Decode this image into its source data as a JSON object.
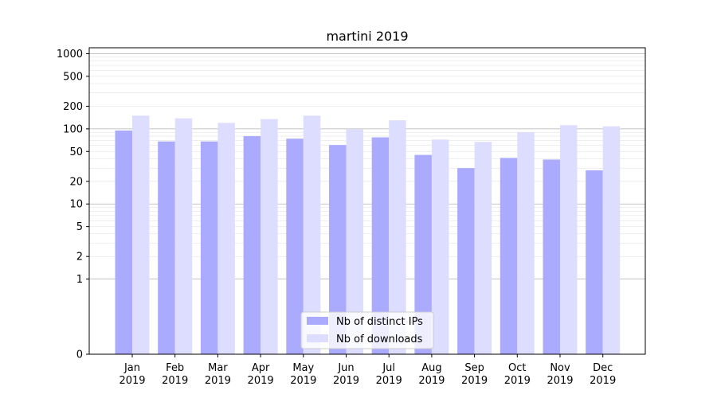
{
  "chart_data": {
    "type": "bar",
    "title": "martini 2019",
    "xlabel": "",
    "ylabel": "",
    "y_scale": "symlog",
    "ylim": [
      0,
      1200
    ],
    "grid": "horizontal",
    "legend_position": "lower-center",
    "y_ticks": [
      0,
      1,
      2,
      5,
      10,
      20,
      50,
      100,
      200,
      500,
      1000
    ],
    "categories": [
      [
        "Jan",
        "2019"
      ],
      [
        "Feb",
        "2019"
      ],
      [
        "Mar",
        "2019"
      ],
      [
        "Apr",
        "2019"
      ],
      [
        "May",
        "2019"
      ],
      [
        "Jun",
        "2019"
      ],
      [
        "Jul",
        "2019"
      ],
      [
        "Aug",
        "2019"
      ],
      [
        "Sep",
        "2019"
      ],
      [
        "Oct",
        "2019"
      ],
      [
        "Nov",
        "2019"
      ],
      [
        "Dec",
        "2019"
      ]
    ],
    "series": [
      {
        "name": "Nb of distinct IPs",
        "color": "#aaaaff",
        "values": [
          95,
          68,
          68,
          80,
          74,
          61,
          77,
          45,
          30,
          41,
          39,
          28
        ]
      },
      {
        "name": "Nb of downloads",
        "color": "#ddddff",
        "values": [
          150,
          138,
          120,
          135,
          150,
          98,
          130,
          72,
          67,
          90,
          112,
          108
        ]
      }
    ]
  }
}
